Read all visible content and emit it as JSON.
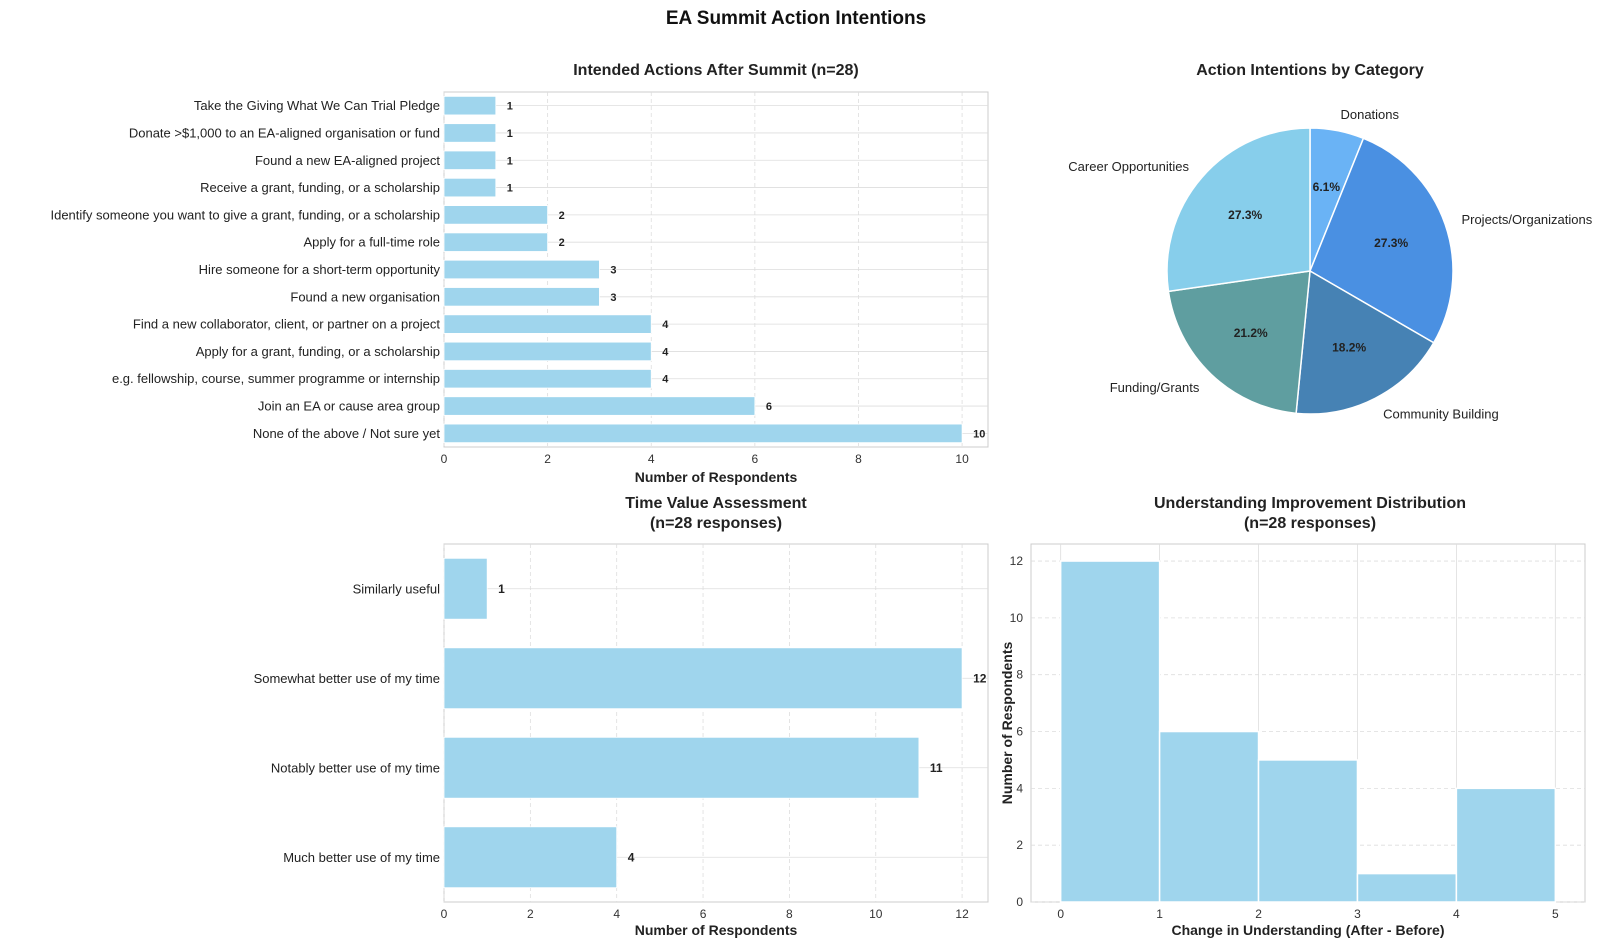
{
  "figure": {
    "title": "EA Summit Action Intentions"
  },
  "colors": {
    "bar": "#9fd5ed",
    "bar_edge": "#ffffff",
    "grid": "#dddddd",
    "axis_frame": "#cccccc",
    "pie": [
      "#6ab3f5",
      "#4a90e2",
      "#4682b4",
      "#5f9ea0",
      "#87ceeb"
    ]
  },
  "chart_data": [
    {
      "type": "bar",
      "orientation": "horizontal",
      "title": "Intended Actions After Summit (n=28)",
      "xlabel": "Number of Respondents",
      "ylabel": "",
      "xlim": [
        0,
        10.5
      ],
      "xticks": [
        0,
        2,
        4,
        6,
        8,
        10
      ],
      "grid": true,
      "categories": [
        "Take the Giving What We Can Trial Pledge",
        "Donate >$1,000 to an EA-aligned organisation or fund",
        "Found a new EA-aligned project",
        "Receive a grant, funding, or a scholarship",
        "Identify someone you want to give a grant, funding, or a scholarship",
        "Apply for a full-time role",
        "Hire someone for a short-term opportunity",
        "Found a new organisation",
        "Find a new collaborator, client, or partner on a project",
        "Apply for a grant, funding, or a scholarship",
        "e.g. fellowship, course, summer programme or internship",
        "Join an EA or cause area group",
        "None of the above / Not sure yet"
      ],
      "values": [
        1,
        1,
        1,
        1,
        2,
        2,
        3,
        3,
        4,
        4,
        4,
        6,
        10
      ]
    },
    {
      "type": "pie",
      "title": "Action Intentions by Category",
      "labels": [
        "Donations",
        "Projects/Organizations",
        "Community Building",
        "Funding/Grants",
        "Career Opportunities"
      ],
      "values": [
        6.1,
        27.3,
        18.2,
        21.2,
        27.3
      ],
      "value_labels": [
        "6.1%",
        "27.3%",
        "18.2%",
        "21.2%",
        "27.3%"
      ],
      "start_angle_deg": 90,
      "direction": "clockwise"
    },
    {
      "type": "bar",
      "orientation": "horizontal",
      "title": "Time Value Assessment",
      "subtitle": "(n=28 responses)",
      "xlabel": "Number of Respondents",
      "ylabel": "",
      "xlim": [
        0,
        12.6
      ],
      "xticks": [
        0,
        2,
        4,
        6,
        8,
        10,
        12
      ],
      "grid": true,
      "categories": [
        "Similarly useful",
        "Somewhat better use of my time",
        "Notably better use of my time",
        "Much better use of my time"
      ],
      "values": [
        1,
        12,
        11,
        4
      ]
    },
    {
      "type": "histogram",
      "title": "Understanding Improvement Distribution",
      "subtitle": "(n=28 responses)",
      "xlabel": "Change in Understanding (After - Before)",
      "ylabel": "Number of Respondents",
      "xlim": [
        -0.3,
        5.3
      ],
      "ylim": [
        0,
        12.6
      ],
      "xticks": [
        0,
        1,
        2,
        3,
        4,
        5
      ],
      "yticks": [
        0,
        2,
        4,
        6,
        8,
        10,
        12
      ],
      "grid": true,
      "bins": [
        [
          0,
          1
        ],
        [
          1,
          2
        ],
        [
          2,
          3
        ],
        [
          3,
          4
        ],
        [
          4,
          5
        ]
      ],
      "counts": [
        12,
        6,
        5,
        1,
        4
      ]
    }
  ]
}
